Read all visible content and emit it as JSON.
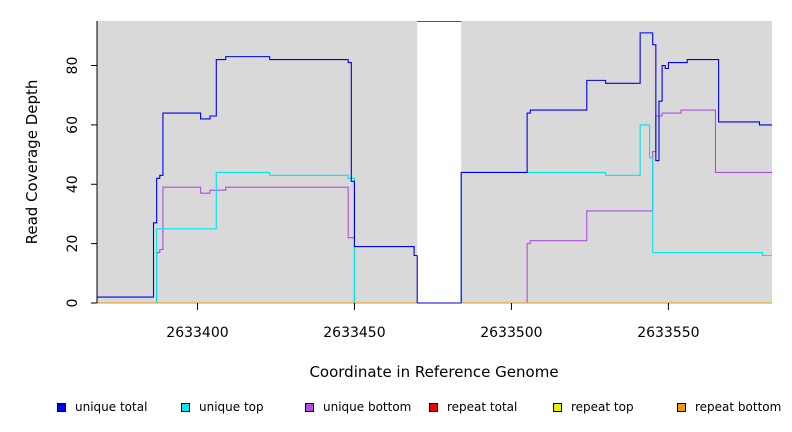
{
  "chart_data": {
    "type": "line",
    "title": "",
    "xlabel": "Coordinate in Reference Genome",
    "ylabel": "Read Coverage Depth",
    "xlim": [
      2633368,
      2633583
    ],
    "ylim": [
      0,
      95
    ],
    "x_ticks": [
      2633400,
      2633450,
      2633500,
      2633550
    ],
    "y_ticks": [
      0,
      20,
      40,
      60,
      80
    ],
    "plot_background": "#d9d9d9",
    "gap": [
      2633470,
      2633484
    ],
    "legend_position": "bottom",
    "series": [
      {
        "name": "unique total",
        "color": "#0000ee",
        "points": [
          [
            2633368,
            2
          ],
          [
            2633386,
            2
          ],
          [
            2633386,
            27
          ],
          [
            2633387,
            27
          ],
          [
            2633387,
            42
          ],
          [
            2633388,
            42
          ],
          [
            2633388,
            43
          ],
          [
            2633389,
            43
          ],
          [
            2633389,
            64
          ],
          [
            2633401,
            64
          ],
          [
            2633401,
            62
          ],
          [
            2633404,
            62
          ],
          [
            2633404,
            63
          ],
          [
            2633406,
            63
          ],
          [
            2633406,
            82
          ],
          [
            2633409,
            82
          ],
          [
            2633409,
            83
          ],
          [
            2633423,
            83
          ],
          [
            2633423,
            82
          ],
          [
            2633448,
            82
          ],
          [
            2633448,
            81
          ],
          [
            2633449,
            81
          ],
          [
            2633449,
            41
          ],
          [
            2633450,
            41
          ],
          [
            2633450,
            19
          ],
          [
            2633469,
            19
          ],
          [
            2633469,
            16
          ],
          [
            2633470,
            16
          ]
        ]
      },
      {
        "name": "unique top",
        "color": "#00e5ee",
        "points": [
          [
            2633368,
            0
          ],
          [
            2633387,
            0
          ],
          [
            2633387,
            25
          ],
          [
            2633406,
            25
          ],
          [
            2633406,
            44
          ],
          [
            2633423,
            44
          ],
          [
            2633423,
            43
          ],
          [
            2633448,
            43
          ],
          [
            2633448,
            42
          ],
          [
            2633450,
            42
          ],
          [
            2633450,
            0
          ],
          [
            2633470,
            0
          ],
          [
            2633484,
            0
          ],
          [
            2633484,
            44
          ],
          [
            2633530,
            44
          ],
          [
            2633530,
            43
          ],
          [
            2633541,
            43
          ],
          [
            2633541,
            60
          ],
          [
            2633544,
            60
          ],
          [
            2633544,
            49
          ],
          [
            2633545,
            49
          ],
          [
            2633545,
            17
          ],
          [
            2633580,
            17
          ],
          [
            2633580,
            16
          ],
          [
            2633583,
            16
          ]
        ]
      },
      {
        "name": "unique bottom",
        "color": "#b04ee0",
        "points": [
          [
            2633368,
            0
          ],
          [
            2633387,
            0
          ],
          [
            2633387,
            17
          ],
          [
            2633388,
            17
          ],
          [
            2633388,
            18
          ],
          [
            2633389,
            18
          ],
          [
            2633389,
            39
          ],
          [
            2633401,
            39
          ],
          [
            2633401,
            37
          ],
          [
            2633404,
            37
          ],
          [
            2633404,
            38
          ],
          [
            2633409,
            38
          ],
          [
            2633409,
            39
          ],
          [
            2633448,
            39
          ],
          [
            2633448,
            22
          ],
          [
            2633450,
            22
          ],
          [
            2633450,
            0
          ],
          [
            2633470,
            0
          ],
          [
            2633484,
            0
          ],
          [
            2633505,
            0
          ],
          [
            2633505,
            20
          ],
          [
            2633506,
            20
          ],
          [
            2633506,
            21
          ],
          [
            2633524,
            21
          ],
          [
            2633524,
            31
          ],
          [
            2633545,
            31
          ],
          [
            2633545,
            51
          ],
          [
            2633546,
            51
          ],
          [
            2633546,
            63
          ],
          [
            2633548,
            63
          ],
          [
            2633548,
            64
          ],
          [
            2633554,
            64
          ],
          [
            2633554,
            65
          ],
          [
            2633565,
            65
          ],
          [
            2633565,
            44
          ],
          [
            2633583,
            44
          ]
        ]
      },
      {
        "name": "repeat total",
        "color": "#ee0000",
        "points": [
          [
            2633368,
            0
          ],
          [
            2633583,
            0
          ]
        ]
      },
      {
        "name": "repeat top",
        "color": "#eeee00",
        "points": [
          [
            2633368,
            0
          ],
          [
            2633583,
            0
          ]
        ]
      },
      {
        "name": "repeat bottom",
        "color": "#ee9a00",
        "points": [
          [
            2633368,
            0
          ],
          [
            2633583,
            0
          ]
        ]
      }
    ],
    "overlay_total_right": {
      "name": "unique total",
      "color": "#0000ee",
      "points": [
        [
          2633484,
          44
        ],
        [
          2633505,
          44
        ],
        [
          2633505,
          64
        ],
        [
          2633506,
          64
        ],
        [
          2633506,
          65
        ],
        [
          2633524,
          65
        ],
        [
          2633524,
          75
        ],
        [
          2633530,
          75
        ],
        [
          2633530,
          74
        ],
        [
          2633541,
          74
        ],
        [
          2633541,
          91
        ],
        [
          2633545,
          91
        ],
        [
          2633545,
          87
        ],
        [
          2633546,
          87
        ],
        [
          2633546,
          48
        ],
        [
          2633547,
          48
        ],
        [
          2633547,
          68
        ],
        [
          2633548,
          68
        ],
        [
          2633548,
          80
        ],
        [
          2633549,
          80
        ],
        [
          2633549,
          79
        ],
        [
          2633550,
          79
        ],
        [
          2633550,
          81
        ],
        [
          2633556,
          81
        ],
        [
          2633556,
          82
        ],
        [
          2633566,
          82
        ],
        [
          2633566,
          61
        ],
        [
          2633579,
          61
        ],
        [
          2633579,
          60
        ],
        [
          2633583,
          60
        ]
      ]
    }
  }
}
